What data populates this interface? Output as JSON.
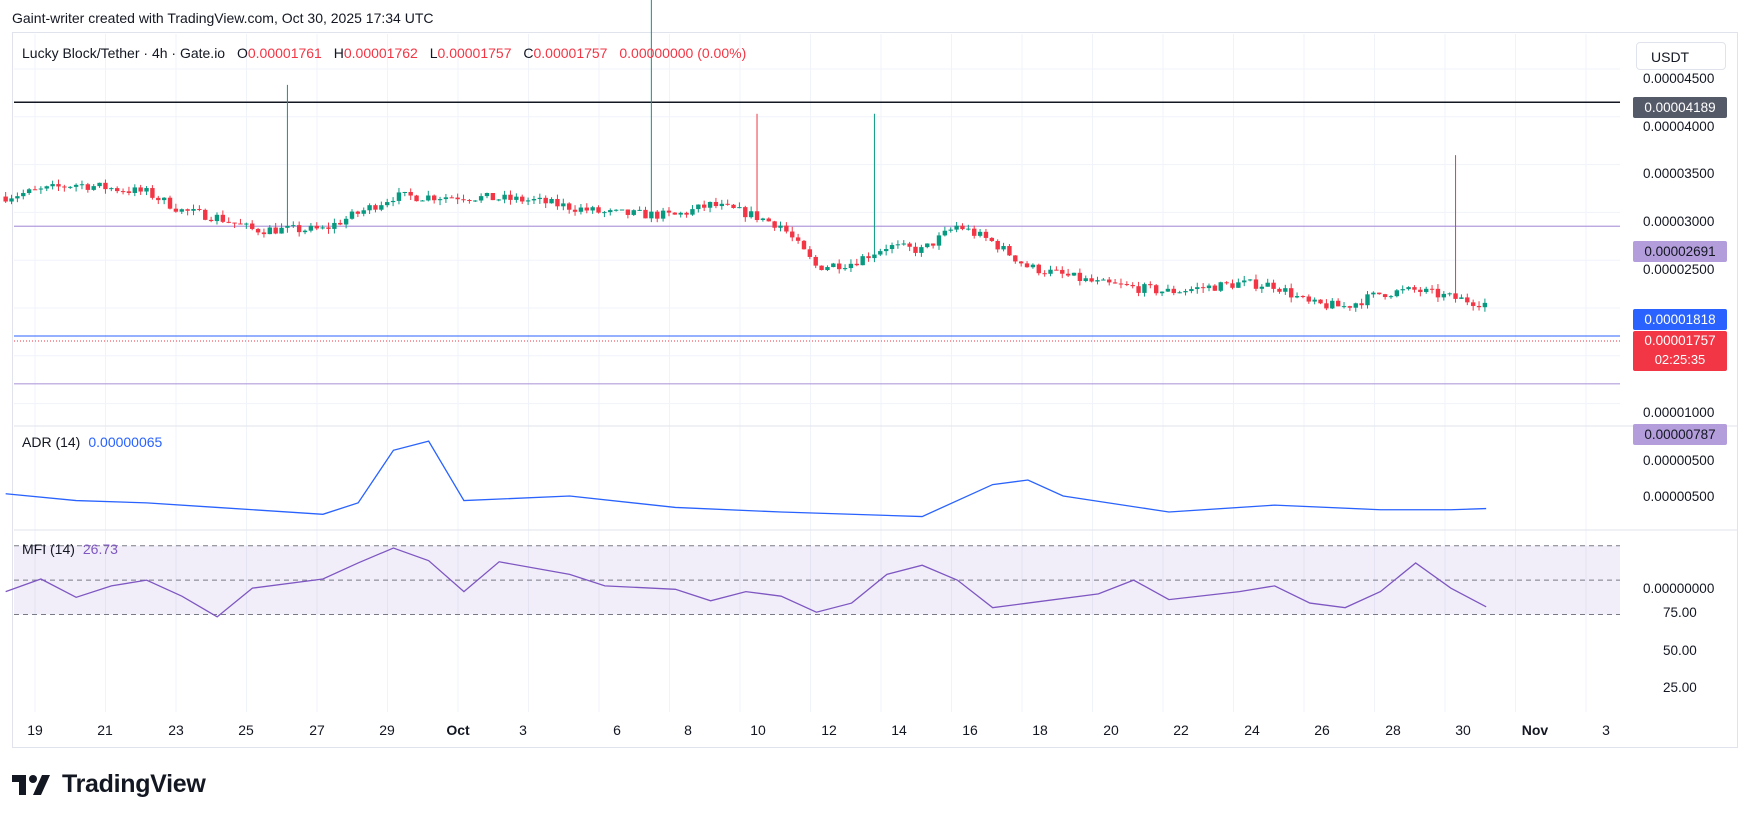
{
  "header": {
    "attribution": "Gaint-writer created with TradingView.com, Oct 30, 2025 17:34 UTC"
  },
  "legend": {
    "symbol": "Lucky Block/Tether · 4h · Gate.io",
    "o_label": "O",
    "o_value": "0.00001761",
    "h_label": "H",
    "h_value": "0.00001762",
    "l_label": "L",
    "l_value": "0.00001757",
    "c_label": "C",
    "c_value": "0.00001757",
    "change": "0.00000000 (0.00%)"
  },
  "currency_button": "USDT",
  "price_axis": [
    "0.00004500",
    "0.00004000",
    "0.00003500",
    "0.00003000",
    "0.00002500",
    "0.00001000",
    "0.00000500"
  ],
  "tags": {
    "line1": "0.00004189",
    "line2": "0.00002691",
    "blue": "0.00001818",
    "last": "0.00001757",
    "countdown": "02:25:35",
    "line3": "0.00000787"
  },
  "adr": {
    "label": "ADR (14)",
    "value": "0.00000065",
    "axis": [
      "0.00000500",
      "0.00000000"
    ]
  },
  "mfi": {
    "label": "MFI (14)",
    "value": "26.73",
    "axis": [
      "75.00",
      "50.00",
      "25.00"
    ]
  },
  "x_axis": [
    "19",
    "21",
    "23",
    "25",
    "27",
    "29",
    "Oct",
    "3",
    "6",
    "8",
    "10",
    "12",
    "14",
    "16",
    "18",
    "20",
    "22",
    "24",
    "26",
    "28",
    "30",
    "Nov",
    "3"
  ],
  "brand": "TradingView",
  "colors": {
    "up": "#089981",
    "down": "#f23645",
    "adr": "#2962ff",
    "mfi": "#7e57c2",
    "blue": "#2962ff",
    "purple": "#b39ddb"
  },
  "chart_data": {
    "type": "candlestick",
    "interval": "4h",
    "horizontal_lines": [
      4.189e-05,
      2.691e-05,
      7.87e-06
    ],
    "anchor_points": [
      {
        "date": "Sep 18",
        "close": 3.05e-05
      },
      {
        "date": "Sep 20",
        "close": 3.2e-05
      },
      {
        "date": "Sep 21",
        "close": 3.15e-05
      },
      {
        "date": "Sep 22",
        "close": 3.1e-05
      },
      {
        "date": "Sep 23",
        "close": 2.88e-05
      },
      {
        "date": "Sep 24",
        "close": 2.8e-05
      },
      {
        "date": "Sep 25",
        "close": 2.65e-05
      },
      {
        "date": "Sep 27",
        "close": 2.65e-05
      },
      {
        "date": "Sep 28",
        "close": 2.85e-05
      },
      {
        "date": "Sep 29",
        "close": 3.05e-05
      },
      {
        "date": "Oct 1",
        "close": 3.05e-05
      },
      {
        "date": "Oct 3",
        "close": 3e-05
      },
      {
        "date": "Oct 5",
        "close": 2.85e-05
      },
      {
        "date": "Oct 7",
        "close": 2.82e-05
      },
      {
        "date": "Oct 8",
        "close": 2.95e-05
      },
      {
        "date": "Oct 9",
        "close": 2.85e-05
      },
      {
        "date": "Oct 10",
        "close": 2.7e-05
      },
      {
        "date": "Oct 11",
        "close": 2.2e-05
      },
      {
        "date": "Oct 12",
        "close": 2.25e-05
      },
      {
        "date": "Oct 13",
        "close": 2.45e-05
      },
      {
        "date": "Oct 14",
        "close": 2.4e-05
      },
      {
        "date": "Oct 15",
        "close": 2.7e-05
      },
      {
        "date": "Oct 16",
        "close": 2.5e-05
      },
      {
        "date": "Oct 17",
        "close": 2.2e-05
      },
      {
        "date": "Oct 18",
        "close": 2.1e-05
      },
      {
        "date": "Oct 19",
        "close": 2e-05
      },
      {
        "date": "Oct 21",
        "close": 1.9e-05
      },
      {
        "date": "Oct 23",
        "close": 2e-05
      },
      {
        "date": "Oct 24",
        "close": 1.98e-05
      },
      {
        "date": "Oct 25",
        "close": 1.75e-05
      },
      {
        "date": "Oct 26",
        "close": 1.72e-05
      },
      {
        "date": "Oct 27",
        "close": 1.88e-05
      },
      {
        "date": "Oct 28",
        "close": 1.92e-05
      },
      {
        "date": "Oct 29",
        "close": 1.83e-05
      },
      {
        "date": "Oct 30",
        "close": 1.757e-05
      }
    ],
    "price_ylim": [
      3.5e-06,
      4.7e-05
    ],
    "adr_series": [
      {
        "date": "Sep 18",
        "value": 1.3e-06
      },
      {
        "date": "Sep 20",
        "value": 1e-06
      },
      {
        "date": "Sep 22",
        "value": 9e-07
      },
      {
        "date": "Sep 24",
        "value": 7e-07
      },
      {
        "date": "Sep 27",
        "value": 4e-07
      },
      {
        "date": "Sep 28",
        "value": 9e-07
      },
      {
        "date": "Sep 29",
        "value": 3.2e-06
      },
      {
        "date": "Sep 30",
        "value": 3.6e-06
      },
      {
        "date": "Oct 1",
        "value": 1e-06
      },
      {
        "date": "Oct 4",
        "value": 1.2e-06
      },
      {
        "date": "Oct 7",
        "value": 7e-07
      },
      {
        "date": "Oct 10",
        "value": 5e-07
      },
      {
        "date": "Oct 14",
        "value": 3e-07
      },
      {
        "date": "Oct 16",
        "value": 1.7e-06
      },
      {
        "date": "Oct 17",
        "value": 1.9e-06
      },
      {
        "date": "Oct 18",
        "value": 1.2e-06
      },
      {
        "date": "Oct 21",
        "value": 5e-07
      },
      {
        "date": "Oct 24",
        "value": 8e-07
      },
      {
        "date": "Oct 27",
        "value": 6e-07
      },
      {
        "date": "Oct 29",
        "value": 6e-07
      },
      {
        "date": "Oct 30",
        "value": 6.5e-07
      }
    ],
    "adr_ylim": [
      -2e-07,
      4e-06
    ],
    "mfi_series": [
      {
        "date": "Sep 18",
        "value": 40
      },
      {
        "date": "Sep 19",
        "value": 51
      },
      {
        "date": "Sep 20",
        "value": 35
      },
      {
        "date": "Sep 21",
        "value": 45
      },
      {
        "date": "Sep 22",
        "value": 50
      },
      {
        "date": "Sep 23",
        "value": 36
      },
      {
        "date": "Sep 24",
        "value": 18
      },
      {
        "date": "Sep 25",
        "value": 43
      },
      {
        "date": "Sep 27",
        "value": 51
      },
      {
        "date": "Sep 28",
        "value": 65
      },
      {
        "date": "Sep 29",
        "value": 78
      },
      {
        "date": "Sep 30",
        "value": 67
      },
      {
        "date": "Oct 1",
        "value": 40
      },
      {
        "date": "Oct 2",
        "value": 66
      },
      {
        "date": "Oct 4",
        "value": 55
      },
      {
        "date": "Oct 5",
        "value": 45
      },
      {
        "date": "Oct 7",
        "value": 42
      },
      {
        "date": "Oct 8",
        "value": 32
      },
      {
        "date": "Oct 9",
        "value": 40
      },
      {
        "date": "Oct 10",
        "value": 36
      },
      {
        "date": "Oct 11",
        "value": 22
      },
      {
        "date": "Oct 12",
        "value": 30
      },
      {
        "date": "Oct 13",
        "value": 55
      },
      {
        "date": "Oct 14",
        "value": 63
      },
      {
        "date": "Oct 15",
        "value": 50
      },
      {
        "date": "Oct 16",
        "value": 26
      },
      {
        "date": "Oct 17",
        "value": 30
      },
      {
        "date": "Oct 19",
        "value": 38
      },
      {
        "date": "Oct 20",
        "value": 50
      },
      {
        "date": "Oct 21",
        "value": 33
      },
      {
        "date": "Oct 23",
        "value": 40
      },
      {
        "date": "Oct 24",
        "value": 45
      },
      {
        "date": "Oct 25",
        "value": 30
      },
      {
        "date": "Oct 26",
        "value": 26
      },
      {
        "date": "Oct 27",
        "value": 40
      },
      {
        "date": "Oct 28",
        "value": 65
      },
      {
        "date": "Oct 29",
        "value": 43
      },
      {
        "date": "Oct 30",
        "value": 26.73
      }
    ],
    "mfi_ylim": [
      10,
      85
    ],
    "mfi_bands": [
      80,
      50,
      20
    ]
  }
}
